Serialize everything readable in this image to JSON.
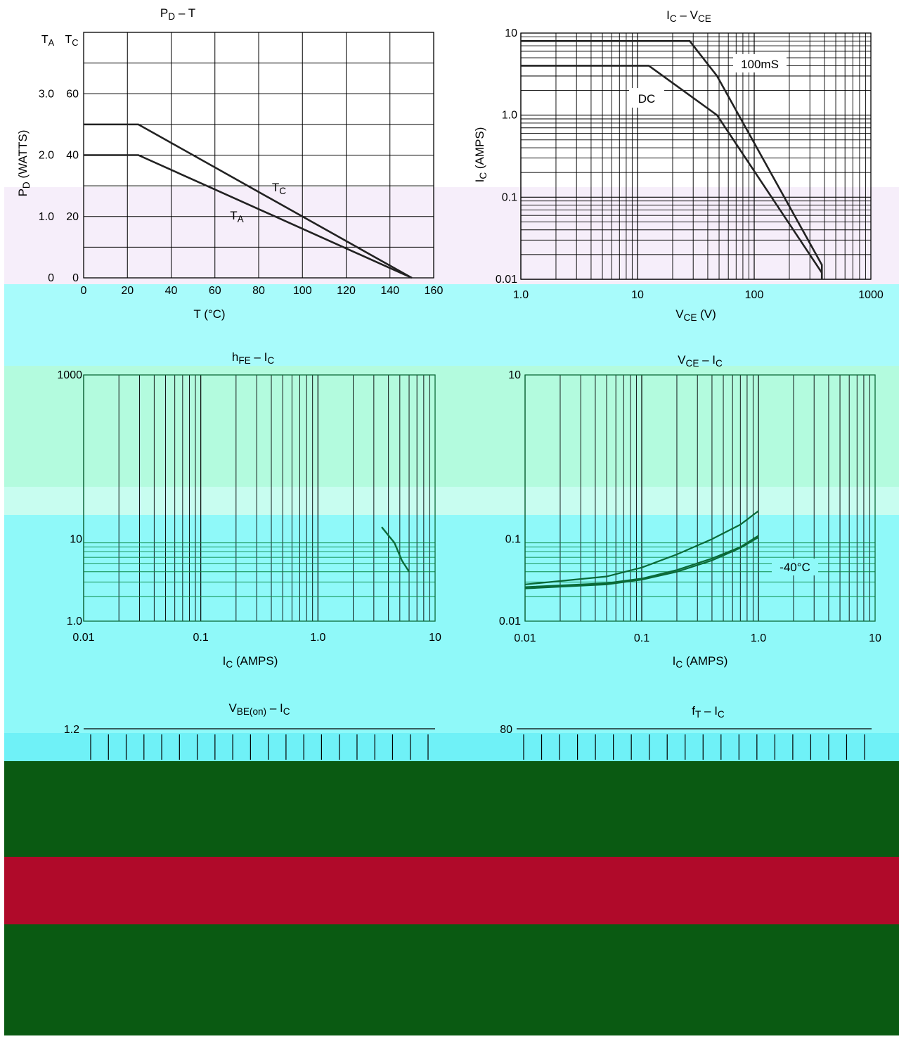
{
  "chart_data": [
    {
      "id": "pd_t",
      "type": "line",
      "title": "P_D – T",
      "xlabel": "T (°C)",
      "ylabel": "P_D (WATTS)",
      "xlim": [
        0,
        160
      ],
      "ylim": [
        0,
        80
      ],
      "x_ticks": [
        0,
        20,
        40,
        60,
        80,
        100,
        120,
        140,
        160
      ],
      "y_ticks_TC": [
        0,
        20,
        40,
        60
      ],
      "y_ticks_TA": [
        "0",
        "1.0",
        "2.0",
        "3.0"
      ],
      "y_header": [
        "T_A",
        "T_C"
      ],
      "grid": true,
      "series": [
        {
          "name": "T_C",
          "x": [
            0,
            25,
            150
          ],
          "y": [
            50,
            50,
            0
          ]
        },
        {
          "name": "T_A",
          "x": [
            0,
            25,
            150
          ],
          "y": [
            40,
            40,
            0
          ]
        }
      ]
    },
    {
      "id": "ic_vce",
      "type": "line",
      "title": "I_C – V_CE",
      "xlabel": "V_CE (V)",
      "ylabel": "I_C (AMPS)",
      "xscale": "log",
      "yscale": "log",
      "xlim": [
        1,
        1000
      ],
      "ylim": [
        0.01,
        10
      ],
      "x_ticks": [
        "1.0",
        "10",
        "100",
        "1000"
      ],
      "y_ticks": [
        "0.01",
        "0.1",
        "1.0",
        "10"
      ],
      "grid": true,
      "series": [
        {
          "name": "100mS",
          "x": [
            1,
            28,
            48,
            380,
            380
          ],
          "y": [
            8,
            8,
            3,
            0.015,
            0.01
          ]
        },
        {
          "name": "DC",
          "x": [
            1,
            12.5,
            48,
            380,
            380
          ],
          "y": [
            4,
            4,
            1,
            0.012,
            0.01
          ]
        }
      ]
    },
    {
      "id": "hfe_ic",
      "type": "line",
      "title": "h_FE – I_C",
      "xlabel": "I_C (AMPS)",
      "ylabel": "",
      "xscale": "log",
      "yscale": "log",
      "xlim": [
        0.01,
        10
      ],
      "ylim": [
        1,
        1000
      ],
      "x_ticks": [
        "0.01",
        "0.1",
        "1.0",
        "10"
      ],
      "y_ticks": [
        "1.0",
        "10",
        "1000"
      ],
      "grid": true,
      "series": [
        {
          "x": [
            3.5,
            4.5,
            5.2,
            6
          ],
          "y": [
            14,
            9,
            5.5,
            4
          ]
        }
      ]
    },
    {
      "id": "vce_ic",
      "type": "line",
      "title": "V_CE – I_C",
      "xlabel": "I_C (AMPS)",
      "ylabel": "",
      "xscale": "log",
      "yscale": "log",
      "xlim": [
        0.01,
        10
      ],
      "ylim": [
        0.01,
        10
      ],
      "x_ticks": [
        "0.01",
        "0.1",
        "1.0",
        "10"
      ],
      "y_ticks": [
        "0.01",
        "0.1",
        "10"
      ],
      "grid": true,
      "annotations": [
        "-40°C"
      ],
      "series": [
        {
          "x": [
            0.01,
            0.05,
            0.1,
            0.2,
            0.4,
            0.7,
            1.0
          ],
          "y": [
            0.028,
            0.035,
            0.045,
            0.065,
            0.1,
            0.15,
            0.22
          ]
        },
        {
          "x": [
            0.01,
            0.05,
            0.1,
            0.2,
            0.4,
            0.7,
            1.0
          ],
          "y": [
            0.026,
            0.029,
            0.033,
            0.042,
            0.058,
            0.08,
            0.11
          ]
        },
        {
          "x": [
            0.01,
            0.05,
            0.1,
            0.2,
            0.4,
            0.7,
            1.0
          ],
          "y": [
            0.025,
            0.028,
            0.032,
            0.04,
            0.055,
            0.078,
            0.105
          ]
        }
      ]
    },
    {
      "id": "vbe_ic",
      "type": "line",
      "title": "V_BE(on) – I_C",
      "xlabel": "",
      "ylabel": "",
      "y_ticks": [
        "1.2"
      ],
      "series": []
    },
    {
      "id": "ft_ic",
      "type": "line",
      "title": "f_T – I_C",
      "xlabel": "",
      "ylabel": "",
      "y_ticks": [
        "80"
      ],
      "series": []
    }
  ]
}
